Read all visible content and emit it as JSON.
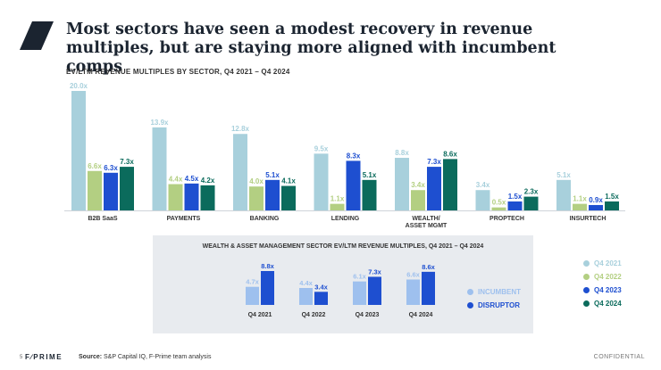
{
  "title": "Most sectors have seen a modest recovery in revenue multiples, but are staying more aligned with incumbent comps",
  "colors": {
    "title": "#1b2430",
    "Q4 2021": "#a8d0dc",
    "Q4 2022": "#b3cf82",
    "Q4 2023": "#1e4fd0",
    "Q4 2024": "#0b6b5c",
    "INCUMBENT": "#9ec0ee",
    "DISRUPTOR": "#1e4fd0",
    "panel": "#e8ebef"
  },
  "chart_data": [
    {
      "type": "bar",
      "title": "EV/LTM REVENUE MULTIPLES BY SECTOR, Q4 2021 – Q4 2024",
      "categories": [
        "B2B SaaS",
        "PAYMENTS",
        "BANKING",
        "LENDING",
        "WEALTH/\nASSET MGMT",
        "PROPTECH",
        "INSURTECH"
      ],
      "series": [
        {
          "name": "Q4 2021",
          "values": [
            20.0,
            13.9,
            12.8,
            9.5,
            8.8,
            3.4,
            5.1
          ],
          "labels": [
            "20.0x",
            "13.9x",
            "12.8x",
            "9.5x",
            "8.8x",
            "3.4x",
            "5.1x"
          ]
        },
        {
          "name": "Q4 2022",
          "values": [
            6.6,
            4.4,
            4.0,
            1.1,
            3.4,
            0.5,
            1.1
          ],
          "labels": [
            "6.6x",
            "4.4x",
            "4.0x",
            "1.1x",
            "3.4x",
            "0.5x",
            "1.1x"
          ]
        },
        {
          "name": "Q4 2023",
          "values": [
            6.3,
            4.5,
            5.1,
            8.3,
            7.3,
            1.5,
            0.9
          ],
          "labels": [
            "6.3x",
            "4.5x",
            "5.1x",
            "8.3x",
            "7.3x",
            "1.5x",
            "0.9x"
          ]
        },
        {
          "name": "Q4 2024",
          "values": [
            7.3,
            4.2,
            4.1,
            5.1,
            8.6,
            2.3,
            1.5
          ],
          "labels": [
            "7.3x",
            "4.2x",
            "4.1x",
            "5.1x",
            "8.6x",
            "2.3x",
            "1.5x"
          ]
        }
      ],
      "ylim": [
        0,
        20
      ],
      "legend": "right"
    },
    {
      "type": "bar",
      "title": "WEALTH & ASSET MANAGEMENT SECTOR EV/LTM REVENUE MULTIPLES, Q4 2021 – Q4 2024",
      "categories": [
        "Q4 2021",
        "Q4 2022",
        "Q4 2023",
        "Q4 2024"
      ],
      "series": [
        {
          "name": "INCUMBENT",
          "values": [
            4.7,
            4.4,
            6.1,
            6.6
          ],
          "labels": [
            "4.7x",
            "4.4x",
            "6.1x",
            "6.6x"
          ]
        },
        {
          "name": "DISRUPTOR",
          "values": [
            8.8,
            3.4,
            7.3,
            8.6
          ],
          "labels": [
            "8.8x",
            "3.4x",
            "7.3x",
            "8.6x"
          ]
        }
      ],
      "ylim": [
        0,
        8.8
      ],
      "legend": "right"
    }
  ],
  "footer": {
    "page": "5",
    "brand": "F∕PRIME",
    "source_label": "Source:",
    "source_text": " S&P Capital IQ, F-Prime team analysis",
    "confidential": "CONFIDENTIAL"
  }
}
